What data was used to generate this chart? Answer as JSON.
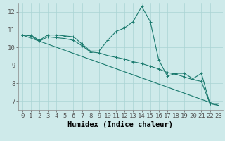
{
  "xlabel": "Humidex (Indice chaleur)",
  "ylabel": "",
  "background_color": "#ceeaea",
  "line_color": "#1a7a6e",
  "xlim": [
    -0.5,
    23.5
  ],
  "ylim": [
    6.5,
    12.5
  ],
  "yticks": [
    7,
    8,
    9,
    10,
    11,
    12
  ],
  "xticks": [
    0,
    1,
    2,
    3,
    4,
    5,
    6,
    7,
    8,
    9,
    10,
    11,
    12,
    13,
    14,
    15,
    16,
    17,
    18,
    19,
    20,
    21,
    22,
    23
  ],
  "series1_x": [
    0,
    1,
    2,
    3,
    4,
    5,
    6,
    7,
    8,
    9,
    10,
    11,
    12,
    13,
    14,
    15,
    16,
    17,
    18,
    19,
    20,
    21,
    22,
    23
  ],
  "series1_y": [
    10.7,
    10.7,
    10.4,
    10.7,
    10.7,
    10.65,
    10.6,
    10.2,
    9.8,
    9.8,
    10.4,
    10.9,
    11.1,
    11.45,
    12.3,
    11.45,
    9.3,
    8.4,
    8.55,
    8.55,
    8.25,
    8.55,
    6.85,
    6.85
  ],
  "series2_x": [
    0,
    1,
    2,
    3,
    4,
    5,
    6,
    7,
    8,
    9,
    10,
    11,
    12,
    13,
    14,
    15,
    16,
    17,
    18,
    19,
    20,
    21,
    22,
    23
  ],
  "series2_y": [
    10.7,
    10.65,
    10.35,
    10.6,
    10.55,
    10.5,
    10.4,
    10.1,
    9.75,
    9.7,
    9.55,
    9.45,
    9.35,
    9.2,
    9.1,
    8.95,
    8.8,
    8.6,
    8.5,
    8.35,
    8.2,
    8.1,
    6.85,
    6.75
  ],
  "series3_x": [
    0,
    23
  ],
  "series3_y": [
    10.7,
    6.75
  ],
  "grid_color": "#aad4d4",
  "tick_fontsize": 6.5,
  "label_fontsize": 7.5
}
